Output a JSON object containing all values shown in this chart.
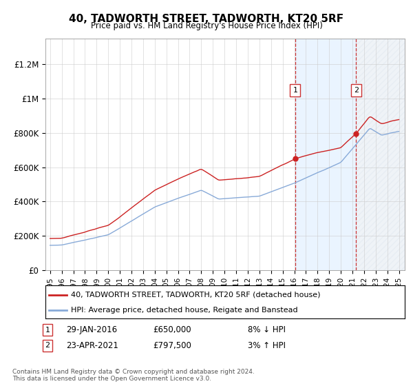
{
  "title": "40, TADWORTH STREET, TADWORTH, KT20 5RF",
  "subtitle": "Price paid vs. HM Land Registry's House Price Index (HPI)",
  "yticks": [
    0,
    200000,
    400000,
    600000,
    800000,
    1000000,
    1200000
  ],
  "ytick_labels": [
    "£0",
    "£200K",
    "£400K",
    "£600K",
    "£800K",
    "£1M",
    "£1.2M"
  ],
  "ylim": [
    0,
    1350000
  ],
  "sale1_date": "29-JAN-2016",
  "sale1_price": 650000,
  "sale1_pct": "8% ↓ HPI",
  "sale1_x": 2016.08,
  "sale2_date": "23-APR-2021",
  "sale2_price": 797500,
  "sale2_pct": "3% ↑ HPI",
  "sale2_x": 2021.31,
  "line1_color": "#cc2222",
  "line2_color": "#88aad8",
  "shade_color": "#ddeeff",
  "footer": "Contains HM Land Registry data © Crown copyright and database right 2024.\nThis data is licensed under the Open Government Licence v3.0.",
  "legend1_label": "40, TADWORTH STREET, TADWORTH, KT20 5RF (detached house)",
  "legend2_label": "HPI: Average price, detached house, Reigate and Banstead",
  "hpi_base": 145000,
  "prop_base": 140000,
  "sale1_price_val": 650000,
  "sale2_price_val": 797500
}
